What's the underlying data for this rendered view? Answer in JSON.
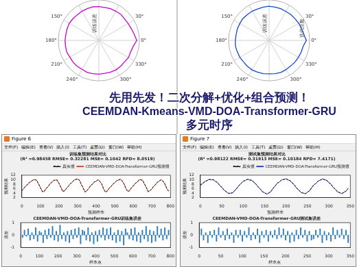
{
  "overlay": [
    "先用先发！二次分解+优化+组合预测！",
    "CEEMDAN-Kmeans-VMD-DOA-Transformer-GRU",
    "多元时序"
  ],
  "windows": [
    {
      "title": "Figure 6",
      "menu": [
        "文件(F)",
        "编辑(E)",
        "查看(V)",
        "插入(I)",
        "工具(T)",
        "桌面(D)",
        "窗口(W)",
        "帮助(H)"
      ]
    },
    {
      "title": "Figure 7",
      "menu": [
        "文件(F)",
        "编辑(E)",
        "查看(V)",
        "插入(I)",
        "工具(T)",
        "桌面(D)",
        "窗口(W)",
        "帮助(H)"
      ]
    }
  ],
  "chart_data": [
    {
      "type": "polar",
      "color": "#c800c8",
      "grid": true,
      "tick_labels": false,
      "annotations": [
        "训练误差"
      ],
      "categories": [
        "0°",
        null,
        null,
        "330°",
        null,
        null,
        "300°",
        null,
        null,
        null,
        null,
        null,
        "240°",
        null,
        null,
        "210°",
        null,
        null,
        "180°",
        null,
        null,
        "150°",
        null,
        null,
        null,
        null,
        null,
        null,
        null,
        null,
        null,
        null,
        null,
        "30°",
        null,
        null
      ],
      "values": [
        1.12,
        1.03,
        1.0,
        1.01,
        0.99,
        1.0,
        1.01,
        1.0,
        0.99,
        1.0,
        1.0,
        1.01,
        0.99,
        1.0,
        1.0,
        0.99,
        1.01,
        1.0,
        1.0,
        0.99,
        1.0,
        1.01,
        1.0,
        0.99,
        1.0,
        1.0,
        1.01,
        1.0,
        0.99,
        1.0,
        1.0,
        1.01,
        0.99,
        1.0,
        1.02,
        1.06
      ],
      "ylim": [
        0,
        1.2
      ],
      "yticks": [
        0,
        1.2
      ]
    },
    {
      "type": "polar",
      "color": "#1446c8",
      "grid": true,
      "tick_labels": false,
      "annotations": [
        "训练误差",
        "迭代次数"
      ],
      "categories": [
        "0°",
        null,
        null,
        "330°",
        null,
        null,
        "300°",
        null,
        null,
        null,
        null,
        null,
        "240°",
        null,
        null,
        "210°",
        null,
        null,
        "180°",
        null,
        null,
        "150°",
        null,
        null,
        null,
        null,
        null,
        null,
        null,
        null,
        null,
        null,
        null,
        "30°",
        null,
        null
      ],
      "values": [
        1.1,
        1.02,
        1.01,
        1.0,
        1.0,
        0.99,
        1.0,
        1.01,
        1.0,
        0.99,
        1.0,
        1.0,
        1.01,
        1.0,
        0.99,
        1.0,
        1.0,
        1.01,
        1.0,
        0.99,
        1.0,
        1.0,
        1.01,
        1.0,
        1.0,
        0.99,
        1.0,
        1.01,
        1.0,
        1.0,
        0.99,
        1.0,
        1.0,
        1.01,
        1.02,
        1.04
      ],
      "ylim": [
        0,
        1.2
      ],
      "yticks": [
        0,
        1.2
      ]
    },
    {
      "type": "line",
      "title": "训练集预测结果对比",
      "subtitle": "(R² =0.98458 RMSE= 0.32281 MSE= 0.1042 RPD= 8.0519)",
      "x_label": "预测样本",
      "y_label": "预测结果",
      "legend": "upper right",
      "grid": false,
      "x": [
        0,
        10,
        20,
        30,
        40,
        50,
        60,
        70,
        80,
        90,
        100,
        110,
        120,
        130,
        140,
        150,
        160,
        170,
        180,
        190,
        200,
        210,
        220,
        230,
        240,
        250,
        260,
        270,
        280,
        290,
        300,
        310,
        320,
        330,
        340,
        350,
        360,
        370,
        380,
        390,
        400,
        410,
        420,
        430,
        440,
        450,
        460,
        470,
        480,
        490,
        500,
        510,
        520,
        530,
        540,
        550,
        560,
        570,
        580,
        590,
        600,
        610,
        620,
        630,
        640,
        650,
        660,
        670,
        680,
        690,
        700,
        710,
        720,
        730,
        740,
        750,
        760,
        770,
        780,
        790
      ],
      "series": [
        {
          "name": "真实值",
          "color": "#000000",
          "line_style": "dashed",
          "marker": "none",
          "values": [
            5.0,
            6.1,
            7.0,
            7.8,
            8.6,
            9.3,
            9.8,
            10.1,
            9.6,
            8.2,
            6.3,
            4.6,
            4.8,
            5.9,
            6.9,
            7.9,
            8.8,
            9.5,
            10.0,
            9.7,
            8.4,
            6.5,
            4.7,
            5.1,
            6.0,
            7.1,
            8.0,
            8.9,
            9.6,
            10.2,
            10.4,
            9.7,
            8.0,
            6.1,
            4.5,
            4.9,
            6.2,
            7.2,
            8.1,
            8.9,
            9.4,
            9.9,
            9.3,
            7.9,
            6.0,
            4.4,
            5.0,
            6.1,
            7.0,
            7.9,
            8.7,
            9.4,
            9.9,
            10.1,
            9.5,
            8.1,
            6.2,
            4.6,
            5.2,
            6.3,
            7.3,
            8.2,
            9.0,
            9.7,
            10.1,
            9.6,
            8.2,
            6.4,
            4.7,
            5.0,
            6.0,
            7.0,
            7.9,
            8.8,
            9.5,
            9.9,
            9.4,
            8.0,
            6.2,
            4.8
          ]
        },
        {
          "name": "CEEMDAN-VMD-DOA-Transformer-GRU预测值",
          "color": "#c8412b",
          "line_style": "solid",
          "marker": "none",
          "values": [
            5.2,
            6.0,
            7.2,
            7.7,
            8.8,
            9.1,
            9.9,
            9.9,
            9.8,
            8.0,
            6.6,
            4.8,
            4.6,
            6.1,
            6.7,
            8.1,
            8.6,
            9.7,
            9.8,
            9.9,
            8.2,
            6.8,
            4.9,
            4.9,
            6.2,
            6.9,
            8.2,
            8.7,
            9.8,
            10.0,
            10.2,
            9.9,
            7.8,
            6.4,
            4.7,
            5.1,
            6.0,
            7.4,
            7.9,
            9.1,
            9.2,
            10.1,
            9.1,
            8.1,
            5.8,
            4.6,
            4.8,
            6.3,
            6.8,
            8.1,
            8.5,
            9.6,
            9.7,
            10.3,
            9.3,
            8.3,
            6.0,
            4.8,
            5.0,
            6.5,
            7.1,
            8.4,
            8.8,
            9.9,
            9.9,
            9.8,
            8.0,
            6.6,
            4.5,
            5.2,
            5.8,
            7.2,
            7.7,
            9.0,
            9.3,
            10.1,
            9.2,
            8.2,
            6.0,
            5.0
          ]
        }
      ],
      "xlim": [
        0,
        800
      ],
      "xticks": [
        0,
        100,
        200,
        300,
        400,
        500,
        600,
        700,
        800
      ],
      "ylim": [
        2,
        12
      ],
      "yticks": [
        2,
        4,
        6,
        8,
        10,
        12
      ]
    },
    {
      "type": "bar",
      "title": "CEEMDAN-VMD-DOA-Transformer-GRU训练集误差",
      "x_label": "样本点",
      "y_label": "误差",
      "grid": false,
      "color": "#2f7fbf",
      "x": [
        0,
        10,
        20,
        30,
        40,
        50,
        60,
        70,
        80,
        90,
        100,
        110,
        120,
        130,
        140,
        150,
        160,
        170,
        180,
        190,
        200,
        210,
        220,
        230,
        240,
        250,
        260,
        270,
        280,
        290,
        300,
        310,
        320,
        330,
        340,
        350,
        360,
        370,
        380,
        390,
        400,
        410,
        420,
        430,
        440,
        450,
        460,
        470,
        480,
        490,
        500,
        510,
        520,
        530,
        540,
        550,
        560,
        570,
        580,
        590,
        600,
        610,
        620,
        630,
        640,
        650,
        660,
        670,
        680,
        690,
        700,
        710,
        720,
        730,
        740,
        750,
        760,
        770,
        780,
        790
      ],
      "values": [
        0.3,
        -0.2,
        0.4,
        -0.1,
        0.5,
        -0.4,
        0.2,
        -0.3,
        0.6,
        -0.5,
        0.3,
        0.2,
        -0.6,
        0.4,
        -0.3,
        0.5,
        -0.2,
        0.7,
        -0.4,
        0.3,
        -0.5,
        0.8,
        -0.3,
        0.2,
        -0.5,
        0.3,
        -0.6,
        0.4,
        -0.3,
        0.5,
        -0.2,
        0.6,
        -0.7,
        0.4,
        0.3,
        -0.4,
        0.6,
        -0.5,
        0.2,
        -0.7,
        0.3,
        -0.5,
        0.4,
        -0.2,
        0.6,
        -0.4,
        0.5,
        -0.3,
        0.6,
        -0.4,
        0.2,
        -0.6,
        0.4,
        -0.5,
        0.3,
        -0.8,
        0.5,
        0.2,
        -0.3,
        0.5,
        -0.4,
        0.6,
        -0.5,
        0.2,
        -0.6,
        0.4,
        -0.3,
        0.7,
        -0.5,
        0.4,
        -0.6,
        0.3,
        -0.5,
        0.7,
        -0.2,
        0.5,
        -0.4,
        0.6,
        -0.3,
        0.4
      ],
      "xlim": [
        0,
        800
      ],
      "xticks": [
        0,
        100,
        200,
        300,
        400,
        500,
        600,
        700,
        800
      ],
      "ylim": [
        -1,
        1
      ],
      "yticks": [
        -1,
        0,
        1
      ]
    },
    {
      "type": "line",
      "title": "测试集预测结果对比",
      "subtitle": "(R² =0.98122 RMSE= 0.31913 MSE= 0.10184 RPD= 7.4171)",
      "x_label": "预测样本",
      "y_label": "预测结果",
      "legend": "upper right",
      "grid": false,
      "x": [
        0,
        5,
        10,
        15,
        20,
        25,
        30,
        35,
        40,
        45,
        50,
        55,
        60,
        65,
        70,
        75,
        80,
        85,
        90,
        95,
        100,
        105,
        110,
        115,
        120,
        125,
        130,
        135,
        140,
        145,
        150,
        155,
        160,
        165,
        170,
        175,
        180,
        185,
        190,
        195,
        200,
        205,
        210,
        215,
        220,
        225,
        230,
        235,
        240,
        245,
        250,
        255,
        260,
        265,
        270,
        275,
        280,
        285,
        290,
        295,
        300,
        305,
        310,
        315,
        320,
        325,
        330,
        335,
        340,
        345
      ],
      "series": [
        {
          "name": "真实值",
          "color": "#000000",
          "line_style": "dashed",
          "marker": "none",
          "values": [
            7.5,
            8.3,
            9.0,
            9.6,
            10.0,
            10.1,
            9.9,
            9.4,
            8.6,
            7.6,
            6.5,
            5.5,
            4.6,
            4.0,
            3.8,
            4.2,
            5.0,
            6.2,
            7.3,
            8.4,
            9.2,
            9.8,
            10.1,
            10.0,
            9.6,
            8.9,
            7.9,
            6.8,
            5.7,
            4.7,
            4.0,
            3.7,
            4.0,
            4.9,
            6.1,
            7.4,
            8.4,
            9.2,
            9.8,
            10.2,
            10.3,
            10.0,
            9.4,
            8.5,
            7.4,
            6.3,
            5.2,
            4.4,
            3.9,
            3.8,
            4.3,
            5.2,
            6.4,
            7.5,
            8.5,
            9.3,
            9.9,
            10.2,
            10.1,
            9.6,
            8.8,
            7.8,
            6.7,
            5.6,
            4.7,
            4.1,
            3.9,
            4.2,
            5.0,
            6.0
          ]
        },
        {
          "name": "CEEMDAN-VMD-DOA-Transformer-GRU预测值",
          "color": "#1f3fb5",
          "line_style": "solid",
          "marker": "none",
          "values": [
            7.7,
            8.1,
            9.2,
            9.4,
            10.2,
            9.9,
            10.1,
            9.2,
            8.8,
            7.4,
            6.7,
            5.3,
            4.8,
            3.8,
            4.0,
            4.0,
            5.2,
            6.0,
            7.5,
            8.2,
            9.4,
            9.6,
            10.3,
            9.8,
            9.8,
            8.7,
            8.1,
            6.6,
            5.9,
            4.5,
            4.2,
            3.5,
            4.2,
            4.7,
            6.3,
            7.2,
            8.6,
            9.0,
            10.0,
            10.0,
            10.5,
            9.8,
            9.6,
            8.3,
            7.6,
            6.1,
            5.4,
            4.2,
            4.1,
            3.6,
            4.5,
            5.0,
            6.6,
            7.7,
            8.3,
            9.5,
            9.7,
            10.4,
            9.9,
            9.8,
            8.6,
            8.0,
            6.5,
            5.8,
            4.5,
            4.3,
            3.7,
            4.4,
            4.8,
            6.2
          ]
        }
      ],
      "xlim": [
        0,
        350
      ],
      "xticks": [
        0,
        50,
        100,
        150,
        200,
        250,
        300,
        350
      ],
      "ylim": [
        2,
        12
      ],
      "yticks": [
        2,
        4,
        6,
        8,
        10,
        12
      ]
    },
    {
      "type": "bar",
      "title": "CEEMDAN-VMD-DOA-Transformer-GRU测试集误差",
      "x_label": "样本点",
      "y_label": "误差",
      "grid": false,
      "color": "#2f7fbf",
      "x": [
        0,
        5,
        10,
        15,
        20,
        25,
        30,
        35,
        40,
        45,
        50,
        55,
        60,
        65,
        70,
        75,
        80,
        85,
        90,
        95,
        100,
        105,
        110,
        115,
        120,
        125,
        130,
        135,
        140,
        145,
        150,
        155,
        160,
        165,
        170,
        175,
        180,
        185,
        190,
        195,
        200,
        205,
        210,
        215,
        220,
        225,
        230,
        235,
        240,
        245,
        250,
        255,
        260,
        265,
        270,
        275,
        280,
        285,
        290,
        295,
        300,
        305,
        310,
        315,
        320,
        325,
        330,
        335,
        340,
        345
      ],
      "values": [
        -0.3,
        0.5,
        -0.4,
        0.2,
        -0.6,
        0.3,
        -0.2,
        0.4,
        -0.5,
        0.6,
        -0.2,
        0.3,
        -0.4,
        0.5,
        -0.3,
        0.2,
        -0.6,
        0.4,
        -0.2,
        0.4,
        -0.5,
        0.3,
        -0.2,
        0.6,
        -0.4,
        0.2,
        -0.3,
        0.5,
        -0.6,
        0.3,
        -0.2,
        0.4,
        -0.5,
        0.3,
        -0.2,
        0.4,
        -0.3,
        0.6,
        -0.2,
        0.5,
        -0.4,
        0.3,
        -0.6,
        0.2,
        -0.5,
        0.4,
        -0.3,
        0.6,
        -0.2,
        0.4,
        -0.5,
        0.3,
        -0.4,
        -0.3,
        0.4,
        -0.2,
        0.5,
        -0.6,
        0.3,
        -0.4,
        0.2,
        -0.5,
        0.6,
        -0.3,
        0.4,
        -0.2,
        0.5,
        -0.3,
        0.4,
        -0.6
      ],
      "xlim": [
        0,
        350
      ],
      "xticks": [
        0,
        50,
        100,
        150,
        200,
        250,
        300,
        350
      ],
      "ylim": [
        -1,
        1
      ],
      "yticks": [
        -1,
        0,
        1
      ]
    }
  ]
}
